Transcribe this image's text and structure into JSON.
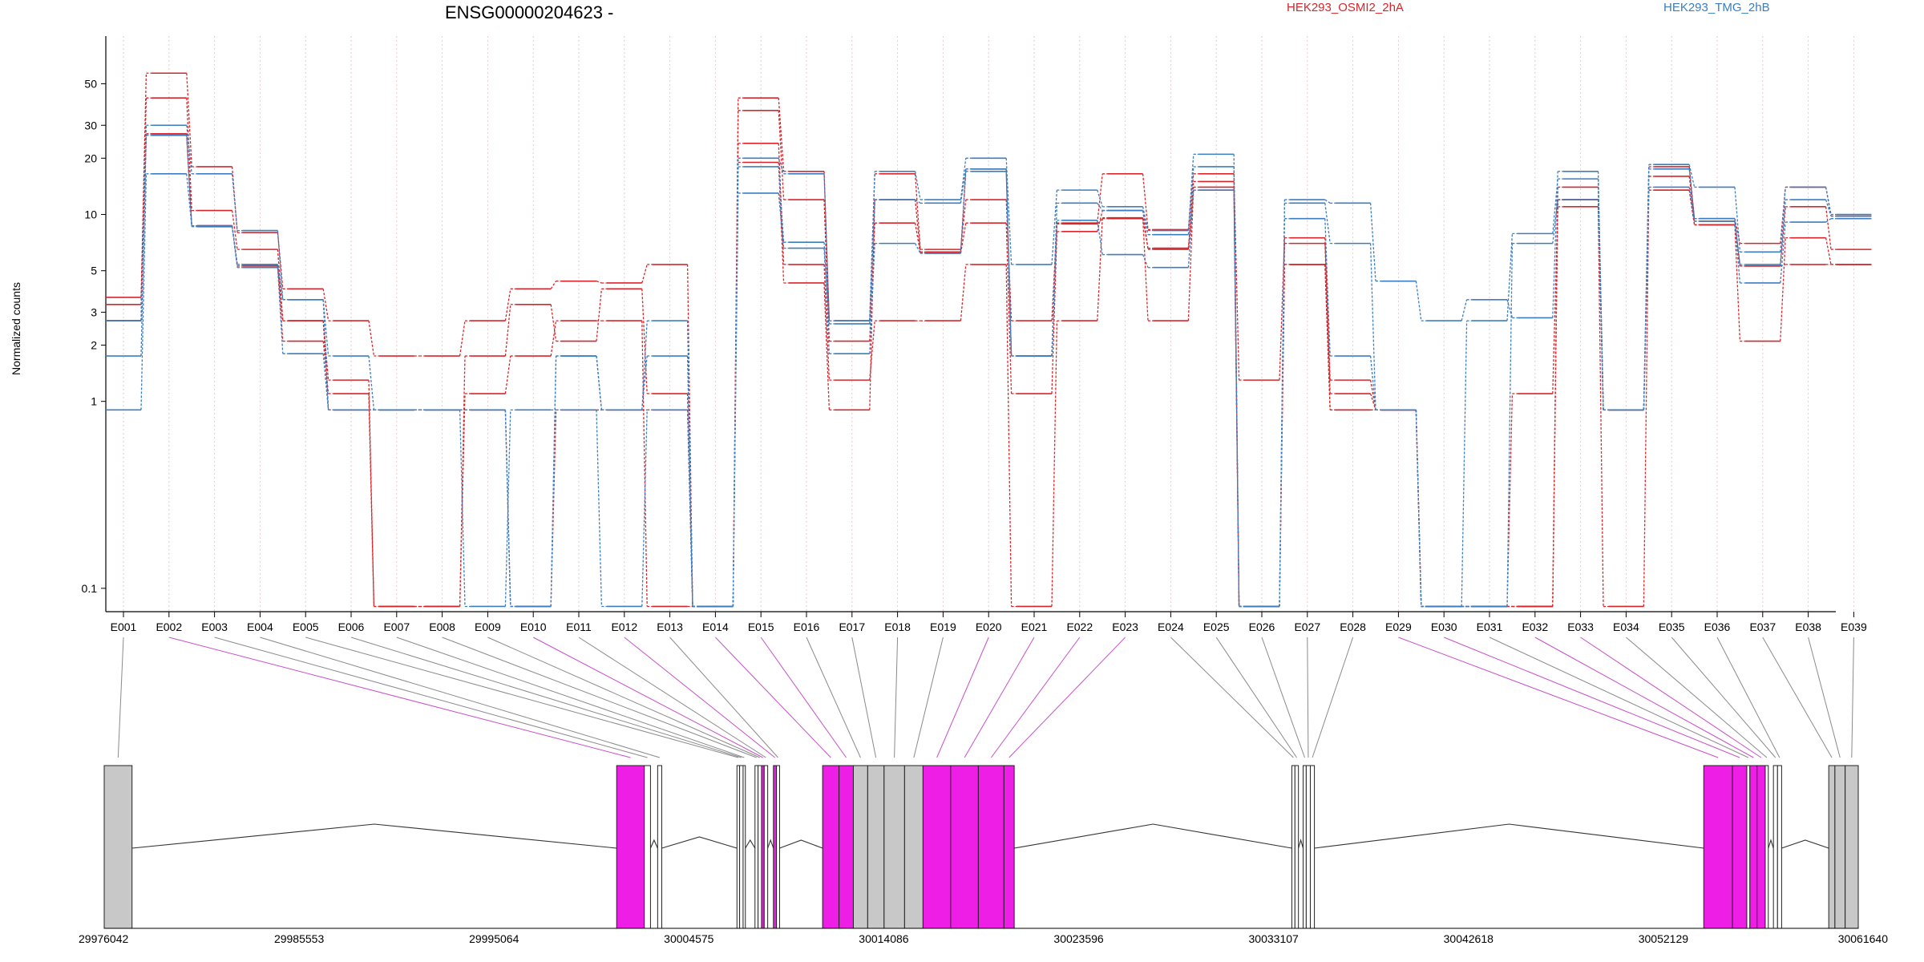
{
  "chart_data": {
    "type": "line",
    "title": "ENSG00000204623 -",
    "ylabel": "Normalized counts",
    "xlabel": "",
    "yscale": "log",
    "ylim": [
      0.075,
      90
    ],
    "yticks": [
      0.1,
      1,
      2,
      3,
      5,
      10,
      20,
      30,
      50
    ],
    "ytick_labels": [
      "0.1",
      "1",
      "2",
      "3",
      "5",
      "10",
      "20",
      "30",
      "50"
    ],
    "grid": "vertical dotted lines at exon centers",
    "legend_position": "top",
    "colors": {
      "HEK293_OSMI2_2hA": "#d6262b",
      "HEK293_TMG_2hB": "#3b7dbf",
      "highlight": "#ee1ee6",
      "exon_gray": "#c8c8c8"
    },
    "categories": [
      "E001",
      "E002",
      "E003",
      "E004",
      "E005",
      "E006",
      "E007",
      "E008",
      "E009",
      "E010",
      "E011",
      "E012",
      "E013",
      "E014",
      "E015",
      "E016",
      "E017",
      "E018",
      "E019",
      "E020",
      "E021",
      "E022",
      "E023",
      "E024",
      "E025",
      "E026",
      "E027",
      "E028",
      "E029",
      "E030",
      "E031",
      "E032",
      "E033",
      "E034",
      "E035",
      "E036",
      "E037",
      "E038",
      "E039"
    ],
    "series": [
      {
        "name": "HEK293_OSMI2_2hA",
        "group": "HEK293_OSMI2_2hA",
        "values": [
          3.6,
          57,
          18,
          8,
          4,
          2.7,
          1.75,
          1.75,
          2.7,
          4,
          4.4,
          4.3,
          5.4,
          0.08,
          42,
          17,
          2.7,
          16.5,
          6.5,
          12,
          2.7,
          9,
          16.5,
          8.3,
          16.5,
          1.3,
          7.5,
          1.3,
          0.9,
          0.08,
          0.08,
          0.08,
          14,
          0.9,
          18,
          9.5,
          7,
          14,
          9.8
        ]
      },
      {
        "name": "HEK293_OSMI2_2hA",
        "group": "HEK293_OSMI2_2hA",
        "values": [
          3.3,
          42,
          10.5,
          6.5,
          2.7,
          1.3,
          0.08,
          0.08,
          1.75,
          3.3,
          2.1,
          4,
          1.1,
          0.08,
          36,
          12,
          2.1,
          9,
          6.2,
          9,
          1.1,
          8.1,
          10.5,
          6.5,
          15,
          0.08,
          7,
          1.1,
          0.9,
          0.08,
          0.08,
          0.08,
          12,
          0.9,
          16,
          9.2,
          5.3,
          11,
          6.5
        ]
      },
      {
        "name": "HEK293_OSMI2_2hA",
        "group": "HEK293_OSMI2_2hA",
        "values": [
          2.7,
          27,
          8.7,
          5.4,
          2.1,
          1.1,
          0.08,
          0.08,
          1.1,
          1.75,
          2.7,
          2.7,
          0.08,
          0.08,
          24,
          5.4,
          1.3,
          2.7,
          2.7,
          5.4,
          0.08,
          2.7,
          9.6,
          2.7,
          14,
          0.08,
          5.4,
          0.9,
          0.9,
          0.08,
          0.08,
          1.1,
          11,
          0.08,
          13.5,
          8.8,
          2.1,
          7.5,
          5.4
        ]
      },
      {
        "name": "HEK293_OSMI2_2hA",
        "group": "HEK293_OSMI2_2hA",
        "values": [
          2.7,
          27,
          8.7,
          5.3,
          2.7,
          0.9,
          0.9,
          0.9,
          0.9,
          0.08,
          0.9,
          0.9,
          0.9,
          0.08,
          19,
          4.3,
          0.9,
          12,
          6.3,
          17.5,
          1.75,
          8.9,
          9.5,
          6.6,
          13.5,
          0.08,
          5.4,
          0.9,
          0.9,
          0.08,
          0.08,
          0.08,
          12,
          0.9,
          13.5,
          8.8,
          5.3,
          5.4,
          5.4
        ]
      },
      {
        "name": "HEK293_TMG_2hB",
        "group": "HEK293_TMG_2hB",
        "values": [
          2.7,
          30,
          16.5,
          8.2,
          3.5,
          1.75,
          0.9,
          0.9,
          0.9,
          0.08,
          1.75,
          0.9,
          2.7,
          0.08,
          20,
          16.5,
          2.7,
          17,
          12,
          20,
          5.4,
          13.5,
          11,
          8.2,
          21,
          0.08,
          12,
          11.5,
          4.4,
          2.7,
          3.5,
          2.8,
          17,
          0.9,
          18.5,
          14,
          6.3,
          14,
          10
        ]
      },
      {
        "name": "HEK293_TMG_2hB",
        "group": "HEK293_TMG_2hB",
        "values": [
          1.75,
          26.5,
          8.7,
          5.4,
          3.5,
          0.9,
          0.9,
          0.9,
          0.9,
          0.08,
          1.75,
          0.9,
          1.75,
          0.08,
          18,
          7.1,
          2.6,
          12,
          11.5,
          17.5,
          1.75,
          11.5,
          10.5,
          7.8,
          18,
          0.08,
          11.5,
          7,
          0.9,
          0.08,
          2.7,
          7.9,
          15.5,
          0.9,
          17.5,
          9.5,
          5.4,
          12,
          9.8
        ]
      },
      {
        "name": "HEK293_TMG_2hB",
        "group": "HEK293_TMG_2hB",
        "values": [
          0.9,
          16.5,
          8.6,
          5.2,
          1.8,
          0.9,
          0.9,
          0.9,
          0.08,
          0.9,
          0.9,
          0.08,
          0.9,
          0.08,
          13,
          6.6,
          1.8,
          7,
          6.2,
          17,
          1.75,
          9.3,
          6.1,
          5.2,
          13.5,
          0.08,
          9.5,
          1.75,
          0.9,
          0.08,
          0.08,
          7,
          12,
          0.9,
          14,
          9.2,
          4.3,
          9.1,
          9.5
        ]
      }
    ],
    "gene_model": {
      "coordinate_labels": [
        "29976042",
        "29985553",
        "29995064",
        "30004575",
        "30014086",
        "30023596",
        "30033107",
        "30042618",
        "30052129",
        "30061640"
      ],
      "coordinate_range": [
        29976042,
        30061640
      ],
      "exons": [
        {
          "id": "E001",
          "start": 29976042,
          "end": 29977400,
          "fill": "gray"
        },
        {
          "id": "E002",
          "start": 30001050,
          "end": 30002400,
          "fill": "magenta"
        },
        {
          "id": "E003",
          "start": 30002400,
          "end": 30002700,
          "fill": "white"
        },
        {
          "id": "E004",
          "start": 30003050,
          "end": 30003250,
          "fill": "white"
        },
        {
          "id": "E005",
          "start": 30006920,
          "end": 30007050,
          "fill": "white"
        },
        {
          "id": "E006",
          "start": 30007050,
          "end": 30007220,
          "fill": "white"
        },
        {
          "id": "E007",
          "start": 30007220,
          "end": 30007330,
          "fill": "white"
        },
        {
          "id": "E008",
          "start": 30007800,
          "end": 30007950,
          "fill": "white"
        },
        {
          "id": "E009",
          "start": 30007950,
          "end": 30008120,
          "fill": "white"
        },
        {
          "id": "E010",
          "start": 30008120,
          "end": 30008250,
          "fill": "magenta"
        },
        {
          "id": "E011",
          "start": 30008250,
          "end": 30008420,
          "fill": "white"
        },
        {
          "id": "E012",
          "start": 30008700,
          "end": 30008850,
          "fill": "magenta"
        },
        {
          "id": "E013",
          "start": 30008850,
          "end": 30009000,
          "fill": "white"
        },
        {
          "id": "E014",
          "start": 30011100,
          "end": 30011900,
          "fill": "magenta"
        },
        {
          "id": "E015",
          "start": 30011900,
          "end": 30012600,
          "fill": "magenta"
        },
        {
          "id": "E016",
          "start": 30012600,
          "end": 30013300,
          "fill": "gray"
        },
        {
          "id": "E017",
          "start": 30013300,
          "end": 30014100,
          "fill": "gray"
        },
        {
          "id": "E018",
          "start": 30014100,
          "end": 30015100,
          "fill": "gray"
        },
        {
          "id": "E019",
          "start": 30015100,
          "end": 30016000,
          "fill": "gray"
        },
        {
          "id": "E020",
          "start": 30016000,
          "end": 30017350,
          "fill": "magenta"
        },
        {
          "id": "E021",
          "start": 30017350,
          "end": 30018700,
          "fill": "magenta"
        },
        {
          "id": "E022",
          "start": 30018700,
          "end": 30019950,
          "fill": "magenta"
        },
        {
          "id": "E023",
          "start": 30019950,
          "end": 30020450,
          "fill": "magenta"
        },
        {
          "id": "E024",
          "start": 30034000,
          "end": 30034150,
          "fill": "white"
        },
        {
          "id": "E025",
          "start": 30034150,
          "end": 30034320,
          "fill": "white"
        },
        {
          "id": "E026",
          "start": 30034550,
          "end": 30034700,
          "fill": "white"
        },
        {
          "id": "E027",
          "start": 30034700,
          "end": 30034900,
          "fill": "white"
        },
        {
          "id": "E028",
          "start": 30034900,
          "end": 30035100,
          "fill": "white"
        },
        {
          "id": "E029",
          "start": 30054100,
          "end": 30055500,
          "fill": "magenta"
        },
        {
          "id": "E030",
          "start": 30055500,
          "end": 30056200,
          "fill": "magenta"
        },
        {
          "id": "E031",
          "start": 30056200,
          "end": 30056350,
          "fill": "white"
        },
        {
          "id": "E032",
          "start": 30056350,
          "end": 30056700,
          "fill": "magenta"
        },
        {
          "id": "E033",
          "start": 30056700,
          "end": 30057100,
          "fill": "magenta"
        },
        {
          "id": "E034",
          "start": 30057100,
          "end": 30057250,
          "fill": "white"
        },
        {
          "id": "E035",
          "start": 30057500,
          "end": 30057700,
          "fill": "white"
        },
        {
          "id": "E036",
          "start": 30057700,
          "end": 30057900,
          "fill": "white"
        },
        {
          "id": "E037",
          "start": 30060200,
          "end": 30060500,
          "fill": "gray"
        },
        {
          "id": "E038",
          "start": 30060500,
          "end": 30061000,
          "fill": "gray"
        },
        {
          "id": "E039",
          "start": 30061000,
          "end": 30061640,
          "fill": "gray"
        }
      ],
      "highlighted_exons": [
        "E002",
        "E010",
        "E012",
        "E014",
        "E015",
        "E020",
        "E021",
        "E022",
        "E023",
        "E029",
        "E030",
        "E032",
        "E033"
      ]
    }
  },
  "legend": {
    "series_a": "HEK293_OSMI2_2hA",
    "series_b": "HEK293_TMG_2hB"
  }
}
